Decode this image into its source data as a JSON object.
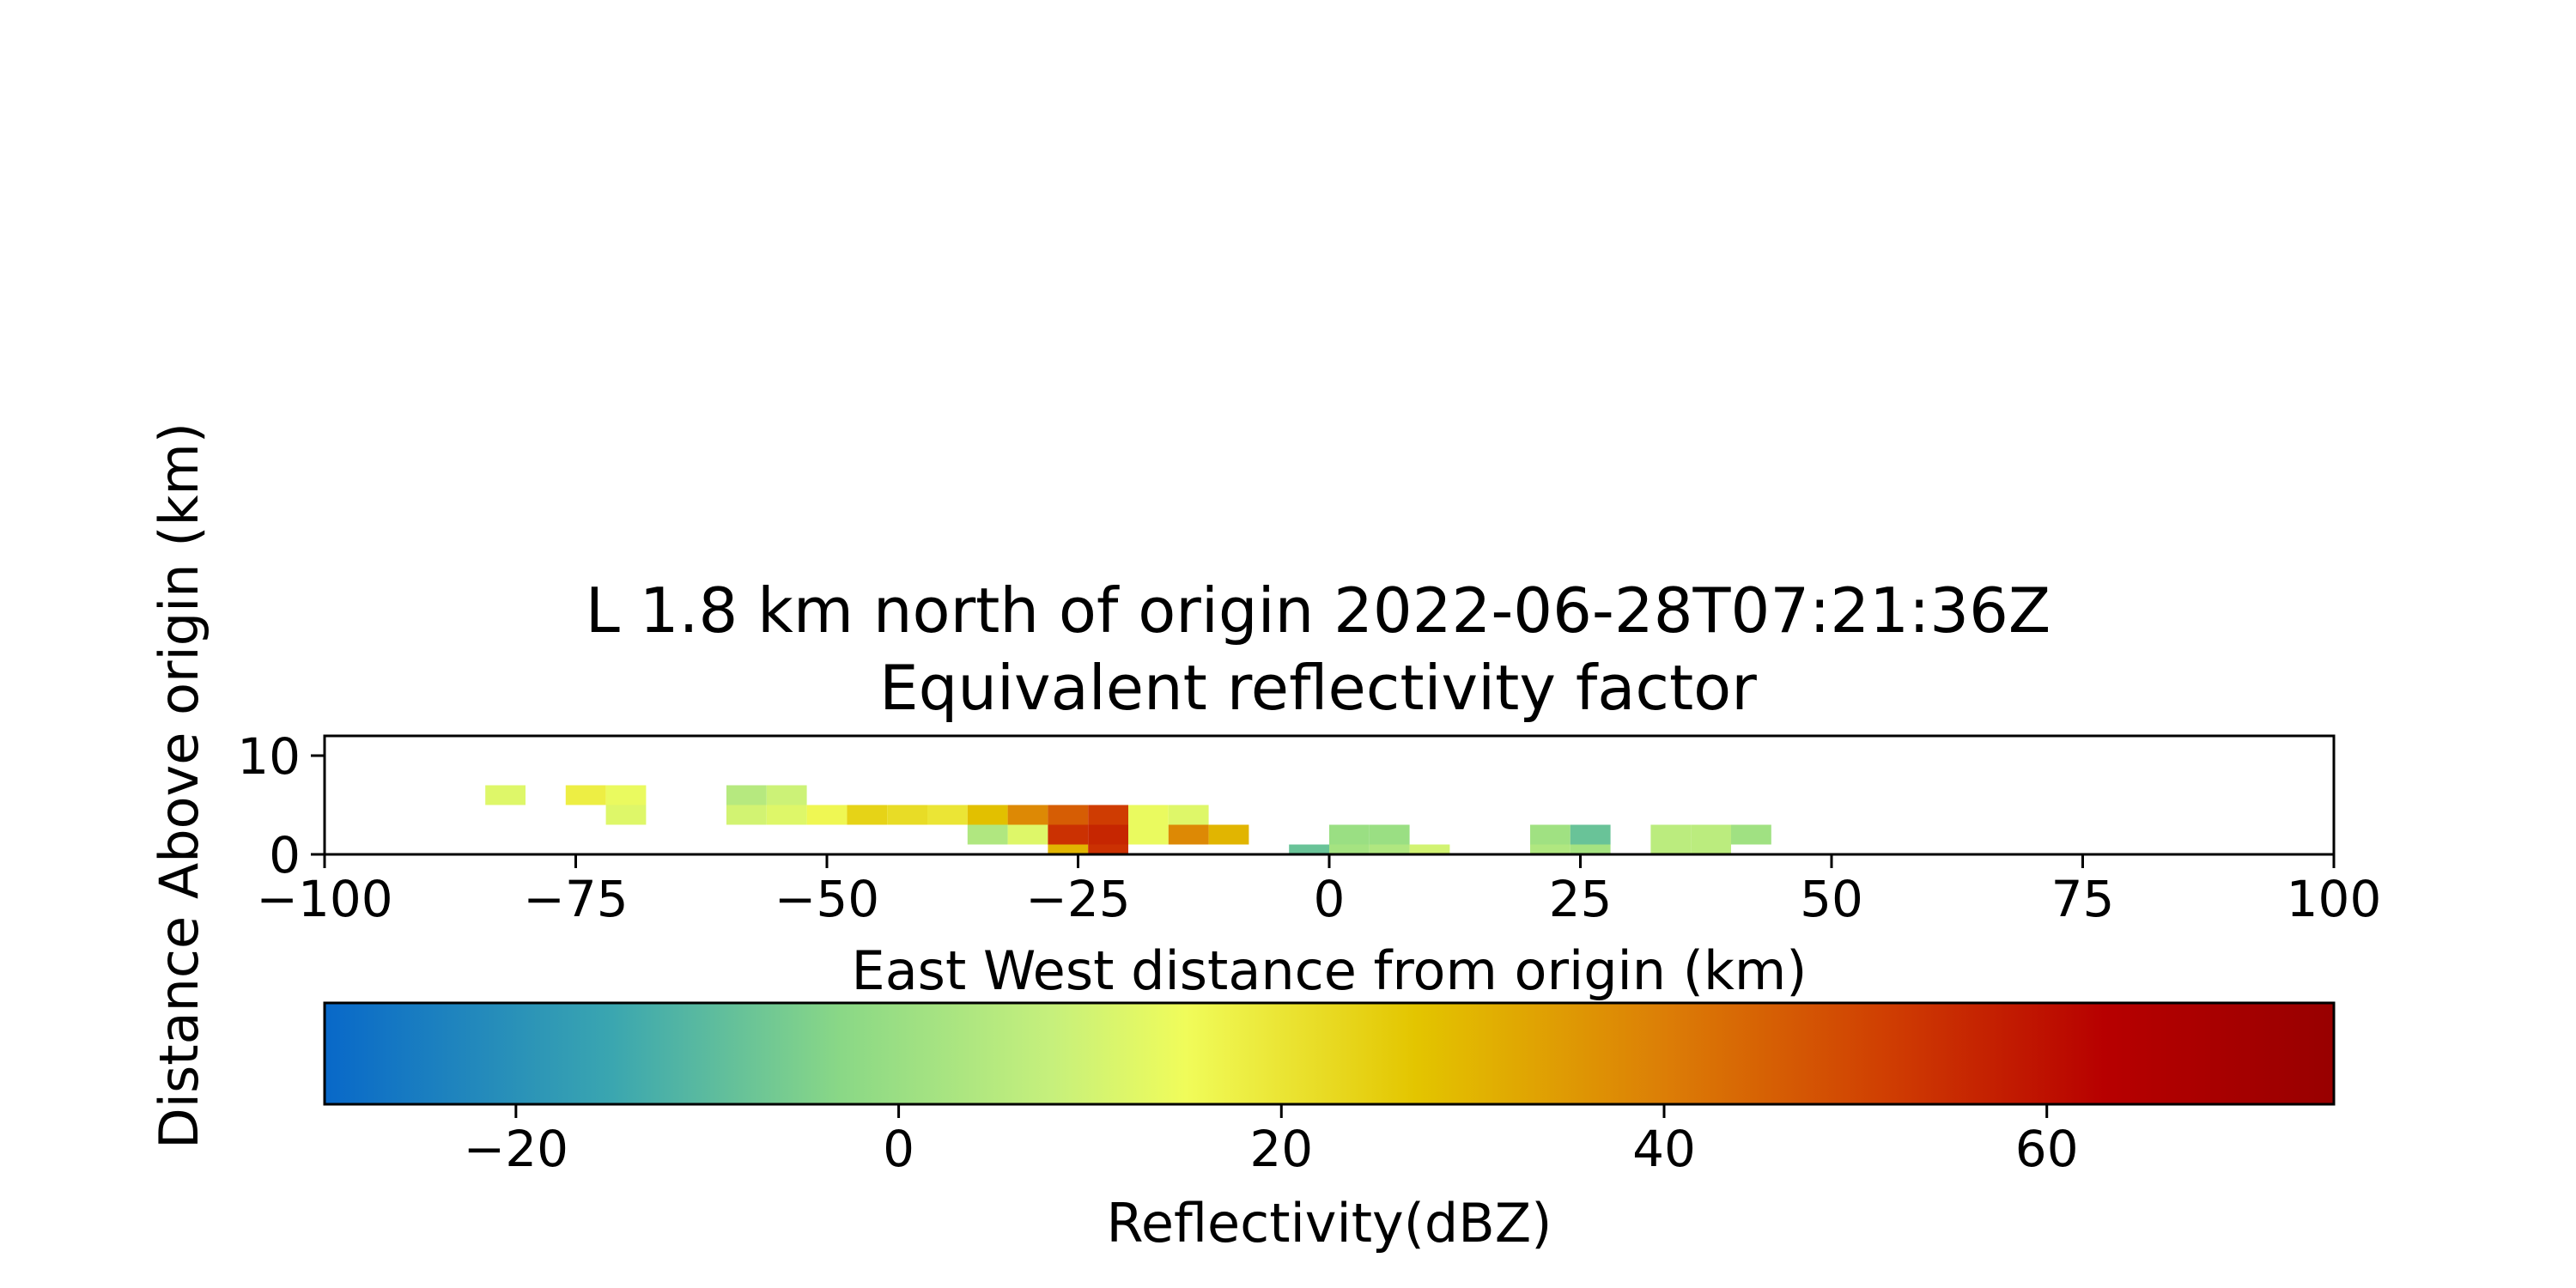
{
  "chart_data": {
    "type": "heatmap",
    "title": [
      "L 1.8 km north of origin 2022-06-28T07:21:36Z",
      "Equivalent reflectivity factor"
    ],
    "xlabel": "East West distance from origin (km)",
    "ylabel": "Distance Above origin (km)",
    "xlim": [
      -100,
      100
    ],
    "ylim": [
      0,
      12
    ],
    "x_ticks": [
      "−100",
      "−75",
      "−50",
      "−25",
      "0",
      "25",
      "50",
      "75",
      "100"
    ],
    "y_ticks": [
      "0",
      "10"
    ],
    "x_tick_values": [
      -100,
      -75,
      -50,
      -25,
      0,
      25,
      50,
      75,
      100
    ],
    "y_tick_values": [
      0,
      10
    ],
    "grid": false,
    "cell_width_km": 4,
    "cell_height_km": 2,
    "cells": [
      {
        "x0": -84,
        "y0": 5,
        "z": 12
      },
      {
        "x0": -76,
        "y0": 5,
        "z": 18
      },
      {
        "x0": -72,
        "y0": 5,
        "z": 14
      },
      {
        "x0": -72,
        "y0": 3,
        "z": 12
      },
      {
        "x0": -60,
        "y0": 5,
        "z": 5
      },
      {
        "x0": -56,
        "y0": 5,
        "z": 9
      },
      {
        "x0": -60,
        "y0": 3,
        "z": 10
      },
      {
        "x0": -56,
        "y0": 3,
        "z": 12
      },
      {
        "x0": -52,
        "y0": 3,
        "z": 16
      },
      {
        "x0": -48,
        "y0": 3,
        "z": 24
      },
      {
        "x0": -44,
        "y0": 3,
        "z": 22
      },
      {
        "x0": -40,
        "y0": 3,
        "z": 20
      },
      {
        "x0": -36,
        "y0": 3,
        "z": 28
      },
      {
        "x0": -32,
        "y0": 3,
        "z": 38
      },
      {
        "x0": -28,
        "y0": 3,
        "z": 46
      },
      {
        "x0": -24,
        "y0": 3,
        "z": 52
      },
      {
        "x0": -20,
        "y0": 3,
        "z": 14
      },
      {
        "x0": -16,
        "y0": 3,
        "z": 12
      },
      {
        "x0": -36,
        "y0": 1,
        "z": 4
      },
      {
        "x0": -32,
        "y0": 1,
        "z": 12
      },
      {
        "x0": -28,
        "y0": 1,
        "z": 54
      },
      {
        "x0": -24,
        "y0": 1,
        "z": 56
      },
      {
        "x0": -20,
        "y0": 1,
        "z": 14
      },
      {
        "x0": -16,
        "y0": 1,
        "z": 38
      },
      {
        "x0": -12,
        "y0": 1,
        "z": 30
      },
      {
        "x0": -28,
        "y0": -1,
        "z": 30
      },
      {
        "x0": -24,
        "y0": -1,
        "z": 54
      },
      {
        "x0": -4,
        "y0": -1,
        "z": -8
      },
      {
        "x0": 0,
        "y0": 1,
        "z": 0
      },
      {
        "x0": 4,
        "y0": 1,
        "z": 0
      },
      {
        "x0": 0,
        "y0": -1,
        "z": 2
      },
      {
        "x0": 4,
        "y0": -1,
        "z": 4
      },
      {
        "x0": 8,
        "y0": -1,
        "z": 10
      },
      {
        "x0": 20,
        "y0": 1,
        "z": 1
      },
      {
        "x0": 24,
        "y0": 1,
        "z": -8
      },
      {
        "x0": 20,
        "y0": -1,
        "z": 4
      },
      {
        "x0": 24,
        "y0": -1,
        "z": 2
      },
      {
        "x0": 32,
        "y0": 1,
        "z": 6
      },
      {
        "x0": 36,
        "y0": 1,
        "z": 6
      },
      {
        "x0": 40,
        "y0": 1,
        "z": 1
      },
      {
        "x0": 32,
        "y0": -1,
        "z": 6
      },
      {
        "x0": 36,
        "y0": -1,
        "z": 6
      }
    ],
    "colorbar": {
      "label": "Reflectivity(dBZ)",
      "range": [
        -30,
        75
      ],
      "ticks": [
        "−20",
        "0",
        "20",
        "40",
        "60"
      ],
      "tick_values": [
        -20,
        0,
        20,
        40,
        60
      ],
      "colormap_stops": [
        {
          "v": -30,
          "color": "#0868c9"
        },
        {
          "v": -15,
          "color": "#3aa6b0"
        },
        {
          "v": -3,
          "color": "#8ad886"
        },
        {
          "v": 8,
          "color": "#c6f07c"
        },
        {
          "v": 15,
          "color": "#f0fc5a"
        },
        {
          "v": 27,
          "color": "#e3c500"
        },
        {
          "v": 40,
          "color": "#dc7e06"
        },
        {
          "v": 52,
          "color": "#cf3c02"
        },
        {
          "v": 63,
          "color": "#b70000"
        },
        {
          "v": 75,
          "color": "#980000"
        }
      ]
    }
  }
}
